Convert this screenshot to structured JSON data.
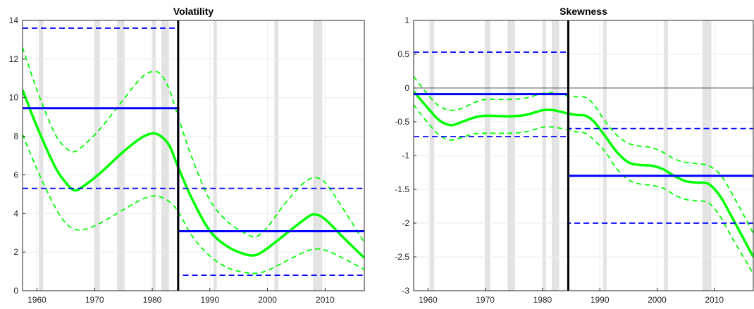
{
  "chart_data": [
    {
      "type": "line",
      "title": "Volatility",
      "xlabel": "",
      "ylabel": "",
      "xlim": [
        1957.5,
        2016.8
      ],
      "ylim": [
        0,
        14
      ],
      "xticks": [
        1960,
        1970,
        1980,
        1990,
        2000,
        2010
      ],
      "yticks": [
        0,
        2,
        4,
        6,
        8,
        10,
        12,
        14
      ],
      "grid": true,
      "recessions": [
        [
          1960.3,
          1961.1
        ],
        [
          1969.9,
          1970.9
        ],
        [
          1973.9,
          1975.2
        ],
        [
          1980.0,
          1980.6
        ],
        [
          1981.6,
          1982.9
        ],
        [
          1990.6,
          1991.2
        ],
        [
          2001.2,
          2001.9
        ],
        [
          2007.9,
          2009.5
        ]
      ],
      "break_year": 1984.5,
      "series": [
        {
          "role": "estimate",
          "color": "#00ff00",
          "x": [
            1957.5,
            1960,
            1963,
            1965,
            1966.5,
            1968,
            1971,
            1975,
            1978,
            1980,
            1981.5,
            1983,
            1984.5,
            1987,
            1990,
            1993,
            1996,
            1998,
            2000,
            2003,
            2006,
            2008,
            2010,
            2013,
            2016.8
          ],
          "y": [
            10.4,
            8.5,
            6.5,
            5.6,
            5.2,
            5.4,
            6.1,
            7.2,
            7.9,
            8.15,
            8.0,
            7.5,
            6.4,
            4.7,
            3.1,
            2.3,
            1.9,
            1.85,
            2.2,
            2.9,
            3.6,
            3.95,
            3.7,
            2.8,
            1.7
          ]
        },
        {
          "role": "upper band",
          "color": "#00ff00",
          "x": [
            1957.5,
            1960,
            1963,
            1965,
            1966.5,
            1968,
            1971,
            1975,
            1978,
            1980,
            1981.5,
            1983,
            1984.5,
            1987,
            1990,
            1993,
            1996,
            1998,
            2000,
            2003,
            2006,
            2008,
            2010,
            2013,
            2016.8
          ],
          "y": [
            12.6,
            10.4,
            8.2,
            7.4,
            7.2,
            7.5,
            8.4,
            9.9,
            11.0,
            11.35,
            11.2,
            10.4,
            9.0,
            6.8,
            4.7,
            3.6,
            3.0,
            2.8,
            3.3,
            4.5,
            5.5,
            5.85,
            5.6,
            4.3,
            2.5
          ]
        },
        {
          "role": "lower band",
          "color": "#00ff00",
          "x": [
            1957.5,
            1960,
            1963,
            1965,
            1966.5,
            1968,
            1971,
            1975,
            1978,
            1980,
            1981.5,
            1983,
            1984.5,
            1987,
            1990,
            1993,
            1996,
            1998,
            2000,
            2003,
            2006,
            2008,
            2010,
            2013,
            2016.8
          ],
          "y": [
            8.1,
            6.3,
            4.4,
            3.5,
            3.2,
            3.15,
            3.5,
            4.2,
            4.7,
            4.9,
            4.85,
            4.6,
            4.1,
            2.8,
            1.8,
            1.2,
            0.95,
            0.9,
            1.05,
            1.5,
            1.95,
            2.15,
            2.1,
            1.7,
            1.1
          ]
        },
        {
          "role": "regime mean",
          "color": "#0000ff",
          "x": [
            1957.5,
            1984.5,
            1984.5,
            2016.8
          ],
          "y": [
            9.45,
            9.45,
            3.08,
            3.08
          ]
        },
        {
          "role": "regime upper",
          "color": "#0000ff",
          "x": [
            1957.5,
            1984.5,
            1984.5,
            2016.8
          ],
          "y": [
            13.6,
            13.6,
            5.3,
            5.3
          ]
        },
        {
          "role": "regime lower",
          "color": "#0000ff",
          "x": [
            1957.5,
            1984.5,
            1984.5,
            2016.8
          ],
          "y": [
            5.3,
            5.3,
            0.8,
            0.8
          ]
        }
      ]
    },
    {
      "type": "line",
      "title": "Skewness",
      "xlabel": "",
      "ylabel": "",
      "xlim": [
        1957.5,
        2016.8
      ],
      "ylim": [
        -3,
        1
      ],
      "xticks": [
        1960,
        1970,
        1980,
        1990,
        2000,
        2010
      ],
      "yticks": [
        -3,
        -2.5,
        -2,
        -1.5,
        -1,
        -0.5,
        0,
        0.5,
        1
      ],
      "grid": true,
      "zero_line": 0,
      "recessions": [
        [
          1960.3,
          1961.1
        ],
        [
          1969.9,
          1970.9
        ],
        [
          1973.9,
          1975.2
        ],
        [
          1980.0,
          1980.6
        ],
        [
          1981.6,
          1982.9
        ],
        [
          1990.6,
          1991.2
        ],
        [
          2001.2,
          2001.9
        ],
        [
          2007.9,
          2009.5
        ]
      ],
      "break_year": 1984.5,
      "series": [
        {
          "role": "estimate",
          "color": "#00ff00",
          "x": [
            1957.5,
            1960,
            1962,
            1964,
            1966,
            1968,
            1970,
            1974,
            1977,
            1980,
            1982,
            1984.5,
            1986,
            1987.5,
            1989,
            1991,
            1993,
            1995,
            1997,
            1999,
            2001,
            2003,
            2005,
            2007,
            2009,
            2011,
            2013,
            2016.8
          ],
          "y": [
            -0.05,
            -0.3,
            -0.48,
            -0.55,
            -0.5,
            -0.44,
            -0.41,
            -0.42,
            -0.4,
            -0.33,
            -0.33,
            -0.38,
            -0.4,
            -0.41,
            -0.5,
            -0.72,
            -0.95,
            -1.1,
            -1.14,
            -1.15,
            -1.2,
            -1.3,
            -1.38,
            -1.4,
            -1.42,
            -1.6,
            -1.9,
            -2.5
          ]
        },
        {
          "role": "upper band",
          "color": "#00ff00",
          "x": [
            1957.5,
            1960,
            1962,
            1964,
            1966,
            1968,
            1970,
            1974,
            1977,
            1980,
            1982,
            1984.5,
            1986,
            1987.5,
            1989,
            1991,
            1993,
            1995,
            1997,
            1999,
            2001,
            2003,
            2005,
            2007,
            2009,
            2011,
            2013,
            2016.8
          ],
          "y": [
            0.17,
            -0.1,
            -0.27,
            -0.33,
            -0.3,
            -0.22,
            -0.17,
            -0.17,
            -0.15,
            -0.08,
            -0.07,
            -0.12,
            -0.13,
            -0.14,
            -0.25,
            -0.5,
            -0.7,
            -0.82,
            -0.86,
            -0.88,
            -0.95,
            -1.05,
            -1.1,
            -1.12,
            -1.15,
            -1.28,
            -1.55,
            -2.15
          ]
        },
        {
          "role": "lower band",
          "color": "#00ff00",
          "x": [
            1957.5,
            1960,
            1962,
            1964,
            1966,
            1968,
            1970,
            1974,
            1977,
            1980,
            1982,
            1984.5,
            1986,
            1987.5,
            1989,
            1991,
            1993,
            1995,
            1997,
            1999,
            2001,
            2003,
            2005,
            2007,
            2009,
            2011,
            2013,
            2016.8
          ],
          "y": [
            -0.25,
            -0.52,
            -0.7,
            -0.77,
            -0.73,
            -0.68,
            -0.67,
            -0.67,
            -0.65,
            -0.58,
            -0.58,
            -0.62,
            -0.65,
            -0.67,
            -0.77,
            -0.95,
            -1.2,
            -1.36,
            -1.42,
            -1.44,
            -1.48,
            -1.58,
            -1.65,
            -1.67,
            -1.7,
            -1.9,
            -2.2,
            -2.75
          ]
        },
        {
          "role": "regime mean",
          "color": "#0000ff",
          "x": [
            1957.5,
            1984.5,
            1984.5,
            2016.8
          ],
          "y": [
            -0.09,
            -0.09,
            -1.3,
            -1.3
          ]
        },
        {
          "role": "regime upper",
          "color": "#0000ff",
          "x": [
            1957.5,
            1984.5,
            1984.5,
            2016.8
          ],
          "y": [
            0.53,
            0.53,
            -0.6,
            -0.6
          ]
        },
        {
          "role": "regime lower",
          "color": "#0000ff",
          "x": [
            1957.5,
            1984.5,
            1984.5,
            2016.8
          ],
          "y": [
            -0.72,
            -0.72,
            -2.0,
            -2.0
          ]
        }
      ]
    }
  ]
}
